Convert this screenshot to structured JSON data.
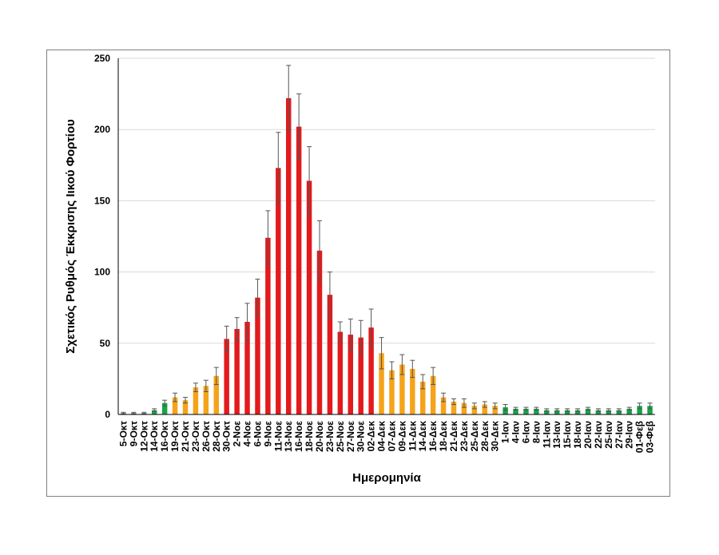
{
  "chart_data": {
    "type": "bar",
    "xlabel": "Ημερομηνία",
    "ylabel": "Σχετικός Ρυθμός Έκκρισης Ιικού Φορτίου",
    "ylim": [
      0,
      250
    ],
    "yticks": [
      0,
      50,
      100,
      150,
      200,
      250
    ],
    "grid": true,
    "colors": {
      "red": "#e31a1c",
      "orange": "#f5a31a",
      "green": "#17a34a",
      "gray": "#a0a0a0",
      "grid": "#d9d9d9",
      "error": "#555555"
    },
    "categories": [
      "5-Οκτ",
      "9-Οκτ",
      "12-Οκτ",
      "14-Οκτ",
      "16-Οκτ",
      "19-Οκτ",
      "21-Οκτ",
      "23-Οκτ",
      "26-Οκτ",
      "28-Οκτ",
      "30-Οκτ",
      "2-Νοε",
      "4-Νοε",
      "6-Νοε",
      "9-Νοε",
      "11-Νοε",
      "13-Νοε",
      "16-Νοε",
      "18-Νοε",
      "20-Νοε",
      "23-Νοε",
      "25-Νοε",
      "27-Νοε",
      "30-Νοε",
      "02-Δεκ",
      "04-Δεκ",
      "07-Δεκ",
      "09-Δεκ",
      "11-Δεκ",
      "14-Δεκ",
      "16-Δεκ",
      "18-Δεκ",
      "21-Δεκ",
      "23-Δεκ",
      "25-Δεκ",
      "28-Δεκ",
      "30-Δεκ",
      "1-Ιαν",
      "4-Ιαν",
      "6-Ιαν",
      "8-Ιαν",
      "11-Ιαν",
      "13-Ιαν",
      "15-Ιαν",
      "18-Ιαν",
      "20-Ιαν",
      "22-Ιαν",
      "25-Ιαν",
      "27-Ιαν",
      "29-Ιαν",
      "01-Φεβ",
      "03-Φεβ"
    ],
    "values": [
      1,
      1,
      1,
      3,
      8,
      12,
      10,
      19,
      20,
      27,
      53,
      60,
      65,
      82,
      124,
      173,
      222,
      202,
      164,
      115,
      84,
      58,
      56,
      54,
      61,
      43,
      31,
      35,
      32,
      23,
      27,
      12,
      9,
      8,
      6,
      7,
      6,
      5,
      4,
      4,
      4,
      3,
      3,
      3,
      3,
      4,
      3,
      3,
      3,
      4,
      6,
      6
    ],
    "errors": [
      0.5,
      0.5,
      0.5,
      1,
      2,
      3,
      2,
      3,
      4,
      6,
      9,
      8,
      13,
      13,
      19,
      25,
      23,
      23,
      24,
      21,
      16,
      7,
      11,
      12,
      13,
      11,
      6,
      7,
      6,
      5,
      6,
      3,
      2,
      3,
      2,
      2,
      2,
      2,
      1,
      1,
      1,
      1,
      1,
      1,
      1,
      1,
      1,
      1,
      1,
      1,
      2,
      2
    ],
    "bar_colors": [
      "gray",
      "gray",
      "gray",
      "green",
      "green",
      "orange",
      "orange",
      "orange",
      "orange",
      "orange",
      "red",
      "red",
      "red",
      "red",
      "red",
      "red",
      "red",
      "red",
      "red",
      "red",
      "red",
      "red",
      "red",
      "red",
      "red",
      "orange",
      "orange",
      "orange",
      "orange",
      "orange",
      "orange",
      "orange",
      "orange",
      "orange",
      "orange",
      "orange",
      "orange",
      "green",
      "green",
      "green",
      "green",
      "green",
      "green",
      "green",
      "green",
      "green",
      "green",
      "green",
      "green",
      "green",
      "green",
      "green"
    ]
  }
}
